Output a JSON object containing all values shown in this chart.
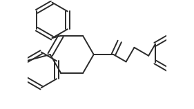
{
  "bg_color": "#ffffff",
  "line_color": "#2a2a2a",
  "line_width": 1.4,
  "figsize": [
    2.81,
    1.58
  ],
  "dpi": 100,
  "ring_r": 0.33,
  "ph_r": 0.27
}
